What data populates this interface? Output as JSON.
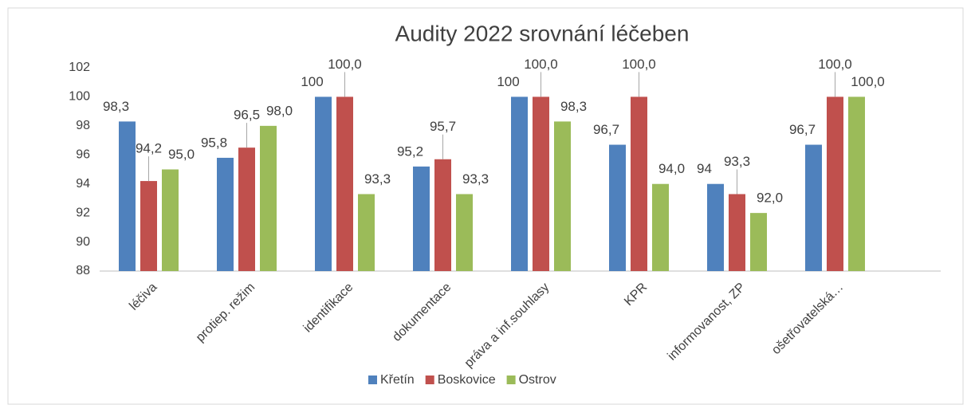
{
  "chart_data": {
    "type": "bar",
    "title": "Audity 2022 srovnání léčeben",
    "categories": [
      "léčiva",
      "protiep. režim",
      "identifikace",
      "dokumentace",
      "práva a inf.souhlasy",
      "KPR",
      "informovanost, ZP",
      "ošetřovatelská…"
    ],
    "series": [
      {
        "name": "Křetín",
        "color": "#4f81bd",
        "values": [
          98.3,
          95.8,
          100,
          95.2,
          100,
          96.7,
          94,
          96.7
        ],
        "value_labels": [
          "98,3",
          "95,8",
          "100",
          "95,2",
          "100",
          "96,7",
          "94",
          "96,7"
        ]
      },
      {
        "name": "Boskovice",
        "color": "#c0504d",
        "values": [
          94.2,
          96.5,
          100.0,
          95.7,
          100.0,
          100.0,
          93.3,
          100.0
        ],
        "value_labels": [
          "94,2",
          "96,5",
          "100,0",
          "95,7",
          "100,0",
          "100,0",
          "93,3",
          "100,0"
        ]
      },
      {
        "name": "Ostrov",
        "color": "#9bbb59",
        "values": [
          95.0,
          98.0,
          93.3,
          93.3,
          98.3,
          94.0,
          92.0,
          100.0
        ],
        "value_labels": [
          "95,0",
          "98,0",
          "93,3",
          "93,3",
          "98,3",
          "94,0",
          "92,0",
          "100,0"
        ]
      }
    ],
    "ylim": [
      88,
      102
    ],
    "yticks": [
      88,
      90,
      92,
      94,
      96,
      98,
      100,
      102
    ],
    "legend": "bottom"
  }
}
